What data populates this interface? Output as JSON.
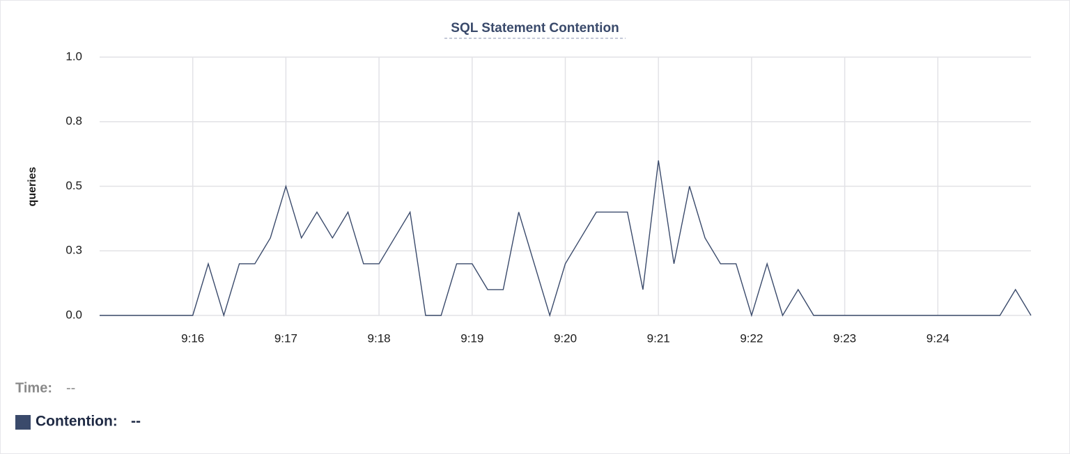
{
  "chart_data": {
    "type": "line",
    "title": "SQL Statement Contention",
    "y_label": "queries",
    "categories": [
      null,
      null,
      null,
      null,
      null,
      null,
      "9:16",
      null,
      null,
      null,
      null,
      null,
      "9:17",
      null,
      null,
      null,
      null,
      null,
      "9:18",
      null,
      null,
      null,
      null,
      null,
      "9:19",
      null,
      null,
      null,
      null,
      null,
      "9:20",
      null,
      null,
      null,
      null,
      null,
      "9:21",
      null,
      null,
      null,
      null,
      null,
      "9:22",
      null,
      null,
      null,
      null,
      null,
      "9:23",
      null,
      null,
      null,
      null,
      null,
      "9:24",
      null,
      null,
      null,
      null,
      null,
      null
    ],
    "series": [
      {
        "name": "Contention:",
        "color": "#3a4a6b",
        "values": [
          0,
          0,
          0,
          0,
          0,
          0,
          0,
          0.2,
          0,
          0.2,
          0.2,
          0.3,
          0.5,
          0.3,
          0.4,
          0.3,
          0.4,
          0.2,
          0.2,
          0.3,
          0.4,
          0,
          0,
          0.2,
          0.2,
          0.1,
          0.1,
          0.4,
          0.2,
          0,
          0.2,
          0.3,
          0.4,
          0.4,
          0.4,
          0.1,
          0.6,
          0.2,
          0.5,
          0.3,
          0.2,
          0.2,
          0,
          0.2,
          0,
          0.1,
          0,
          0,
          0,
          0,
          0,
          0,
          0,
          0,
          0,
          0,
          0,
          0,
          0,
          0.1,
          0
        ]
      }
    ],
    "ylim": [
      0,
      1
    ],
    "yticks": [
      {
        "value": 0,
        "label": "0.0"
      },
      {
        "value": 0.25,
        "label": "0.3"
      },
      {
        "value": 0.5,
        "label": "0.5"
      },
      {
        "value": 0.75,
        "label": "0.8"
      },
      {
        "value": 1,
        "label": "1.0"
      }
    ],
    "grid": true,
    "readout": {
      "time_label": "Time:",
      "time_value": "--",
      "series_value": "--"
    }
  }
}
